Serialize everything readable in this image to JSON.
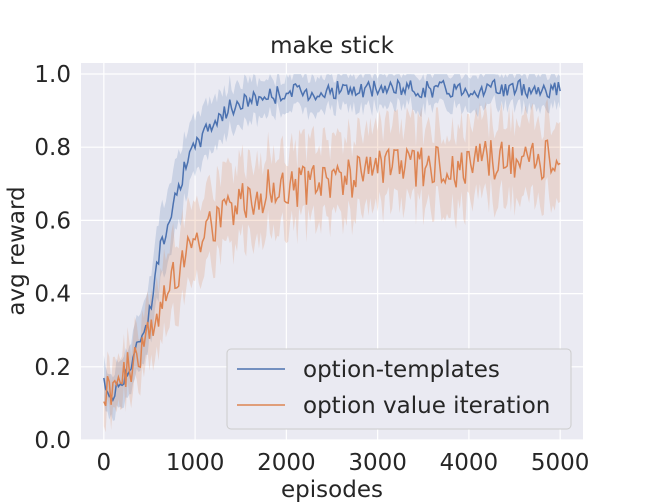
{
  "chart_data": {
    "type": "line",
    "title": "make stick",
    "xlabel": "episodes",
    "ylabel": "avg reward",
    "xlim": [
      -250,
      5250
    ],
    "ylim": [
      0,
      1.03
    ],
    "xticks": [
      0,
      1000,
      2000,
      3000,
      4000,
      5000
    ],
    "yticks": [
      0.0,
      0.2,
      0.4,
      0.6,
      0.8,
      1.0
    ],
    "xtick_labels": [
      "0",
      "1000",
      "2000",
      "3000",
      "4000",
      "5000"
    ],
    "ytick_labels": [
      "0.0",
      "0.2",
      "0.4",
      "0.6",
      "0.8",
      "1.0"
    ],
    "grid": true,
    "legend_position": "lower-right",
    "series": [
      {
        "name": "option-templates",
        "color": "#4c72b0",
        "x": [
          0,
          100,
          200,
          300,
          400,
          500,
          600,
          700,
          800,
          900,
          1000,
          1100,
          1200,
          1300,
          1400,
          1500,
          1600,
          1800,
          2000,
          2200,
          2400,
          2600,
          2800,
          3000,
          3200,
          3400,
          3600,
          3800,
          4000,
          4200,
          4400,
          4600,
          4800,
          5000
        ],
        "y": [
          0.15,
          0.12,
          0.17,
          0.2,
          0.28,
          0.35,
          0.5,
          0.6,
          0.68,
          0.75,
          0.8,
          0.84,
          0.87,
          0.89,
          0.91,
          0.92,
          0.93,
          0.94,
          0.95,
          0.95,
          0.95,
          0.96,
          0.95,
          0.96,
          0.96,
          0.96,
          0.96,
          0.96,
          0.96,
          0.96,
          0.96,
          0.96,
          0.96,
          0.96
        ],
        "ci": [
          0.05,
          0.05,
          0.06,
          0.06,
          0.07,
          0.08,
          0.09,
          0.09,
          0.09,
          0.08,
          0.07,
          0.07,
          0.06,
          0.06,
          0.05,
          0.05,
          0.05,
          0.04,
          0.04,
          0.04,
          0.04,
          0.04,
          0.04,
          0.04,
          0.04,
          0.04,
          0.04,
          0.04,
          0.04,
          0.04,
          0.04,
          0.04,
          0.04,
          0.04
        ]
      },
      {
        "name": "option value iteration",
        "color": "#dd8452",
        "x": [
          0,
          100,
          200,
          300,
          400,
          500,
          600,
          700,
          800,
          900,
          1000,
          1100,
          1200,
          1300,
          1400,
          1500,
          1600,
          1800,
          2000,
          2200,
          2400,
          2600,
          2800,
          3000,
          3200,
          3400,
          3600,
          3800,
          4000,
          4200,
          4400,
          4600,
          4800,
          5000
        ],
        "y": [
          0.15,
          0.13,
          0.17,
          0.2,
          0.24,
          0.28,
          0.35,
          0.42,
          0.47,
          0.52,
          0.55,
          0.57,
          0.59,
          0.61,
          0.63,
          0.65,
          0.66,
          0.68,
          0.69,
          0.7,
          0.71,
          0.72,
          0.72,
          0.73,
          0.74,
          0.74,
          0.75,
          0.75,
          0.75,
          0.76,
          0.76,
          0.76,
          0.76,
          0.76
        ],
        "ci": [
          0.06,
          0.06,
          0.06,
          0.07,
          0.07,
          0.08,
          0.09,
          0.1,
          0.1,
          0.1,
          0.1,
          0.1,
          0.1,
          0.1,
          0.1,
          0.1,
          0.1,
          0.1,
          0.1,
          0.1,
          0.1,
          0.1,
          0.1,
          0.1,
          0.1,
          0.1,
          0.1,
          0.1,
          0.1,
          0.1,
          0.1,
          0.1,
          0.1,
          0.1
        ]
      }
    ]
  }
}
